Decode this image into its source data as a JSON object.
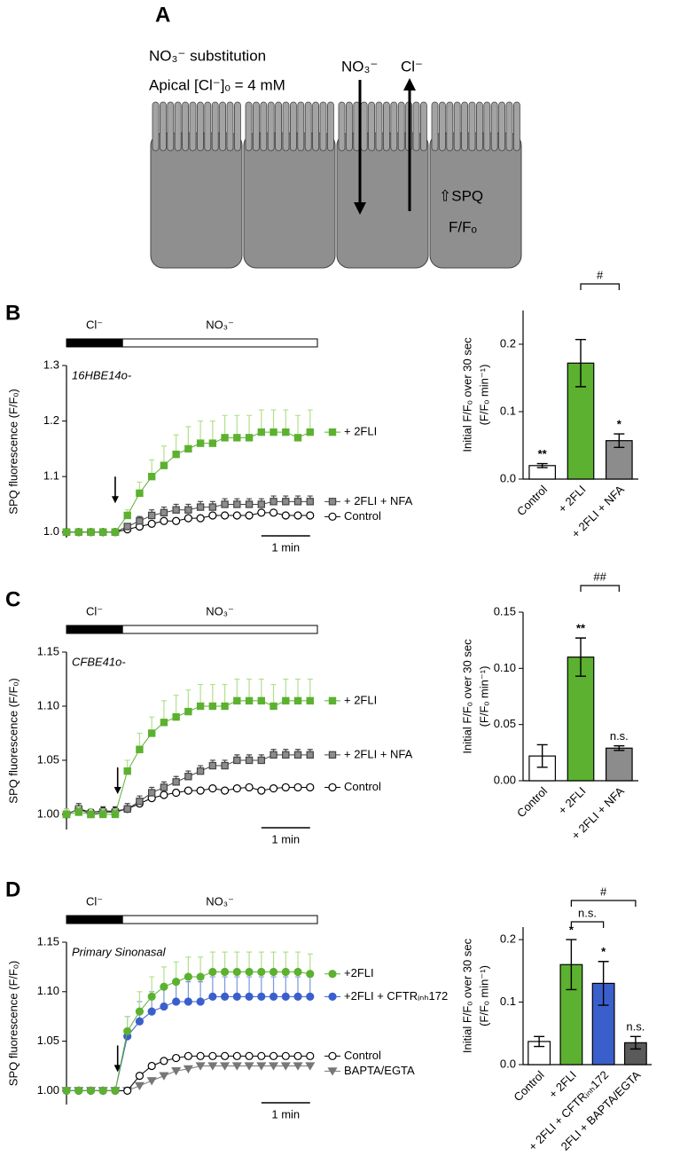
{
  "panel_a": {
    "label": "A",
    "title": "NO₃⁻ substitution",
    "condition": "Apical [Cl⁻]ₒ = 4 mM",
    "influx": "NO₃⁻",
    "efflux": "Cl⁻",
    "readout": "⇧SPQ",
    "readout_measure": "F/Fₒ"
  },
  "chart_data": [
    {
      "type": "line",
      "panel": "B",
      "cell_line": "16HBE14o-",
      "ylabel": "SPQ fluorescence (F/Fₒ)",
      "x": [
        0,
        0.25,
        0.5,
        0.75,
        1,
        1.25,
        1.5,
        1.75,
        2,
        2.25,
        2.5,
        2.75,
        3,
        3.25,
        3.5,
        3.75,
        4,
        4.25,
        4.5,
        4.75,
        5
      ],
      "xlim": [
        0,
        5.15
      ],
      "ylim": [
        0.99,
        1.3
      ],
      "yticks": [
        {
          "value": 1,
          "label": "1.0"
        },
        1.1,
        1.2,
        1.3
      ],
      "arrow_x": 1,
      "solution_bars": [
        {
          "label": "Cl⁻",
          "start": 0,
          "end": 1.15,
          "fill": "#000000"
        },
        {
          "label": "NO₃⁻",
          "start": 1.15,
          "end": 5.15,
          "fill": "#ffffff"
        }
      ],
      "scale_bar": {
        "label": "1 min",
        "length": 1
      },
      "series": [
        {
          "name": "+ 2FLI",
          "color": "#5cb130",
          "error_color": "#b3e08c",
          "marker": "square",
          "fill": "#5cb130",
          "values": [
            1.0,
            1.0,
            1.0,
            1.0,
            1.0,
            1.03,
            1.07,
            1.1,
            1.12,
            1.14,
            1.15,
            1.16,
            1.16,
            1.17,
            1.17,
            1.17,
            1.18,
            1.18,
            1.18,
            1.17,
            1.18
          ],
          "errors": [
            0,
            0,
            0,
            0,
            0,
            0.01,
            0.02,
            0.03,
            0.035,
            0.035,
            0.04,
            0.04,
            0.04,
            0.04,
            0.04,
            0.04,
            0.04,
            0.04,
            0.04,
            0.04,
            0.04
          ]
        },
        {
          "name": "+ 2FLI + NFA",
          "color": "#444444",
          "error_color": "#444444",
          "marker": "square",
          "fill": "#8c8c8c",
          "values": [
            1.0,
            1.0,
            1.0,
            1.0,
            1.0,
            1.01,
            1.02,
            1.03,
            1.035,
            1.04,
            1.04,
            1.045,
            1.045,
            1.05,
            1.05,
            1.05,
            1.05,
            1.055,
            1.055,
            1.055,
            1.055
          ],
          "errors": [
            0,
            0,
            0,
            0,
            0,
            0.005,
            0.008,
            0.01,
            0.01,
            0.01,
            0.01,
            0.01,
            0.01,
            0.01,
            0.01,
            0.01,
            0.01,
            0.01,
            0.01,
            0.01,
            0.01
          ]
        },
        {
          "name": "Control",
          "color": "#000000",
          "marker": "circle",
          "fill": "#ffffff",
          "values": [
            1.0,
            1.0,
            1.0,
            1.0,
            1.0,
            1.005,
            1.01,
            1.015,
            1.02,
            1.02,
            1.025,
            1.025,
            1.03,
            1.03,
            1.03,
            1.03,
            1.035,
            1.035,
            1.03,
            1.03,
            1.03
          ]
        }
      ]
    },
    {
      "type": "bar",
      "categories": [
        "Control",
        "+ 2FLI",
        "+ 2FLI + NFA"
      ],
      "values": [
        0.02,
        0.172,
        0.057
      ],
      "errors": [
        0.003,
        0.035,
        0.01
      ],
      "colors": [
        "#ffffff",
        "#5cb130",
        "#8c8c8c"
      ],
      "ylabel": [
        "Initial F/Fₒ over 30 sec",
        "(F/Fₒ min⁻¹)"
      ],
      "ylim": [
        0,
        0.25
      ],
      "yticks": [
        {
          "value": 0,
          "label": "0.0"
        },
        0.1,
        0.2
      ],
      "markers": [
        {
          "category": "Control",
          "text": "**"
        },
        {
          "category": "+ 2FLI + NFA",
          "text": "*"
        }
      ],
      "brackets": [
        {
          "from": "+ 2FLI",
          "to": "+ 2FLI + NFA",
          "text": "#"
        }
      ]
    },
    {
      "type": "line",
      "panel": "C",
      "cell_line": "CFBE41o-",
      "ylabel": "SPQ fluorescence (F/Fₒ)",
      "x": [
        0,
        0.25,
        0.5,
        0.75,
        1,
        1.25,
        1.5,
        1.75,
        2,
        2.25,
        2.5,
        2.75,
        3,
        3.25,
        3.5,
        3.75,
        4,
        4.25,
        4.5,
        4.75,
        5
      ],
      "xlim": [
        0,
        5.15
      ],
      "ylim": [
        0.986,
        1.15
      ],
      "yticks": [
        {
          "value": 1,
          "label": "1.00"
        },
        1.05,
        {
          "value": 1.1,
          "label": "1.10"
        },
        1.15
      ],
      "arrow_x": 1.05,
      "solution_bars": [
        {
          "label": "Cl⁻",
          "start": 0,
          "end": 1.15,
          "fill": "#000000"
        },
        {
          "label": "NO₃⁻",
          "start": 1.15,
          "end": 5.15,
          "fill": "#ffffff"
        }
      ],
      "scale_bar": {
        "label": "1 min",
        "length": 1
      },
      "series": [
        {
          "name": "+ 2FLI",
          "color": "#5cb130",
          "error_color": "#b3e08c",
          "marker": "square",
          "fill": "#5cb130",
          "values": [
            1.0,
            1.002,
            1.0,
            1.0,
            1.0,
            1.04,
            1.06,
            1.075,
            1.085,
            1.09,
            1.095,
            1.1,
            1.1,
            1.1,
            1.105,
            1.105,
            1.105,
            1.1,
            1.105,
            1.105,
            1.105
          ],
          "errors": [
            0.005,
            0.005,
            0.005,
            0.005,
            0.005,
            0.01,
            0.015,
            0.015,
            0.02,
            0.02,
            0.02,
            0.02,
            0.02,
            0.02,
            0.02,
            0.02,
            0.02,
            0.02,
            0.02,
            0.02,
            0.02
          ]
        },
        {
          "name": "+ 2FLI + NFA",
          "color": "#444444",
          "error_color": "#444444",
          "marker": "square",
          "fill": "#8c8c8c",
          "values": [
            1.0,
            1.005,
            1.0,
            1.002,
            1.002,
            1.005,
            1.012,
            1.02,
            1.025,
            1.03,
            1.035,
            1.04,
            1.045,
            1.045,
            1.05,
            1.05,
            1.05,
            1.055,
            1.055,
            1.055,
            1.055
          ],
          "errors": [
            0.005,
            0.005,
            0.005,
            0.005,
            0.005,
            0.005,
            0.005,
            0.005,
            0.005,
            0.005,
            0.005,
            0.005,
            0.005,
            0.005,
            0.005,
            0.005,
            0.005,
            0.005,
            0.005,
            0.005,
            0.005
          ]
        },
        {
          "name": "Control",
          "color": "#000000",
          "marker": "circle",
          "fill": "#ffffff",
          "values": [
            1.0,
            1.005,
            1.002,
            1.003,
            1.003,
            1.005,
            1.01,
            1.015,
            1.018,
            1.02,
            1.022,
            1.022,
            1.024,
            1.022,
            1.024,
            1.025,
            1.022,
            1.024,
            1.025,
            1.025,
            1.025
          ]
        }
      ]
    },
    {
      "type": "bar",
      "categories": [
        "Control",
        "+ 2FLI",
        "+ 2FLI + NFA"
      ],
      "values": [
        0.022,
        0.11,
        0.029
      ],
      "errors": [
        0.01,
        0.017,
        0.002
      ],
      "colors": [
        "#ffffff",
        "#5cb130",
        "#8c8c8c"
      ],
      "ylabel": [
        "Initial F/Fₒ over 30 sec",
        "(F/Fₒ min⁻¹)"
      ],
      "ylim": [
        0,
        0.15
      ],
      "yticks": [
        {
          "value": 0,
          "label": "0.00"
        },
        0.05,
        {
          "value": 0.1,
          "label": "0.10"
        },
        0.15
      ],
      "markers": [
        {
          "category": "+ 2FLI",
          "text": "**"
        },
        {
          "category": "+ 2FLI + NFA",
          "text": "n.s."
        }
      ],
      "brackets": [
        {
          "from": "+ 2FLI",
          "to": "+ 2FLI + NFA",
          "text": "##"
        }
      ]
    },
    {
      "type": "line",
      "panel": "D",
      "cell_line": "Primary Sinonasal",
      "ylabel": "SPQ fluorescence (F/Fₒ)",
      "x": [
        0,
        0.25,
        0.5,
        0.75,
        1,
        1.25,
        1.5,
        1.75,
        2,
        2.25,
        2.5,
        2.75,
        3,
        3.25,
        3.5,
        3.75,
        4,
        4.25,
        4.5,
        4.75,
        5
      ],
      "xlim": [
        0,
        5.15
      ],
      "ylim": [
        0.986,
        1.15
      ],
      "yticks": [
        {
          "value": 1,
          "label": "1.00"
        },
        1.05,
        {
          "value": 1.1,
          "label": "1.10"
        },
        1.15
      ],
      "arrow_x": 1.05,
      "solution_bars": [
        {
          "label": "Cl⁻",
          "start": 0,
          "end": 1.15,
          "fill": "#000000"
        },
        {
          "label": "NO₃⁻",
          "start": 1.15,
          "end": 5.15,
          "fill": "#ffffff"
        }
      ],
      "scale_bar": {
        "label": "1 min",
        "length": 1
      },
      "series": [
        {
          "name": "+2FLI",
          "color": "#5cb130",
          "error_color": "#b3e08c",
          "marker": "circle",
          "fill": "#5cb130",
          "values": [
            1.0,
            1.0,
            1.0,
            1.0,
            1.0,
            1.06,
            1.08,
            1.095,
            1.105,
            1.11,
            1.115,
            1.115,
            1.12,
            1.12,
            1.12,
            1.12,
            1.12,
            1.12,
            1.12,
            1.12,
            1.118
          ],
          "errors": [
            0,
            0,
            0,
            0,
            0,
            0.015,
            0.02,
            0.02,
            0.02,
            0.02,
            0.02,
            0.02,
            0.02,
            0.02,
            0.02,
            0.02,
            0.02,
            0.02,
            0.02,
            0.02,
            0.02
          ]
        },
        {
          "name": "+2FLI + CFTRᵢₙₕ172",
          "color": "#3a5fcd",
          "error_color": "#7d97dc",
          "marker": "circle",
          "fill": "#3a5fcd",
          "values": [
            1.0,
            1.0,
            1.0,
            1.0,
            1.0,
            1.055,
            1.07,
            1.08,
            1.085,
            1.09,
            1.09,
            1.09,
            1.095,
            1.095,
            1.095,
            1.095,
            1.095,
            1.095,
            1.095,
            1.095,
            1.095
          ],
          "errors": [
            0,
            0,
            0,
            0,
            0,
            0.02,
            0.02,
            0.02,
            0.02,
            0.02,
            0.02,
            0.02,
            0.02,
            0.02,
            0.02,
            0.02,
            0.02,
            0.02,
            0.02,
            0.02,
            0.02
          ]
        },
        {
          "name": "Control",
          "color": "#000000",
          "marker": "circle",
          "fill": "#ffffff",
          "values": [
            1.0,
            1.0,
            1.0,
            1.0,
            1.0,
            1.0,
            1.015,
            1.025,
            1.03,
            1.033,
            1.035,
            1.035,
            1.035,
            1.035,
            1.035,
            1.035,
            1.035,
            1.035,
            1.035,
            1.035,
            1.035
          ]
        },
        {
          "name": "BAPTA/EGTA",
          "color": "#777777",
          "marker": "triangle",
          "fill": "#777777",
          "values": [
            1.0,
            1.0,
            1.0,
            1.0,
            1.0,
            1.0,
            1.005,
            1.01,
            1.015,
            1.02,
            1.022,
            1.025,
            1.025,
            1.025,
            1.025,
            1.025,
            1.025,
            1.025,
            1.025,
            1.025,
            1.025
          ]
        }
      ]
    },
    {
      "type": "bar",
      "categories": [
        "Control",
        "+ 2FLI",
        "+ 2FLI + CFTRᵢₙₕ172",
        "2FLI + BAPTA/EGTA"
      ],
      "values": [
        0.037,
        0.16,
        0.13,
        0.035
      ],
      "errors": [
        0.008,
        0.04,
        0.035,
        0.01
      ],
      "colors": [
        "#ffffff",
        "#5cb130",
        "#3a5fcd",
        "#5a5a5a"
      ],
      "ylabel": [
        "Initial F/Fₒ over 30 sec",
        "(F/Fₒ min⁻¹)"
      ],
      "ylim": [
        0,
        0.22
      ],
      "yticks": [
        {
          "value": 0,
          "label": "0.0"
        },
        0.1,
        0.2
      ],
      "markers": [
        {
          "category": "+ 2FLI",
          "text": "*"
        },
        {
          "category": "+ 2FLI + CFTRᵢₙₕ172",
          "text": "*"
        },
        {
          "category": "2FLI + BAPTA/EGTA",
          "text": "n.s."
        }
      ],
      "brackets": [
        {
          "from": "+ 2FLI",
          "to": "2FLI + BAPTA/EGTA",
          "text": "#"
        },
        {
          "from": "+ 2FLI",
          "to": "+ 2FLI + CFTRᵢₙₕ172",
          "text": "n.s."
        }
      ]
    }
  ]
}
